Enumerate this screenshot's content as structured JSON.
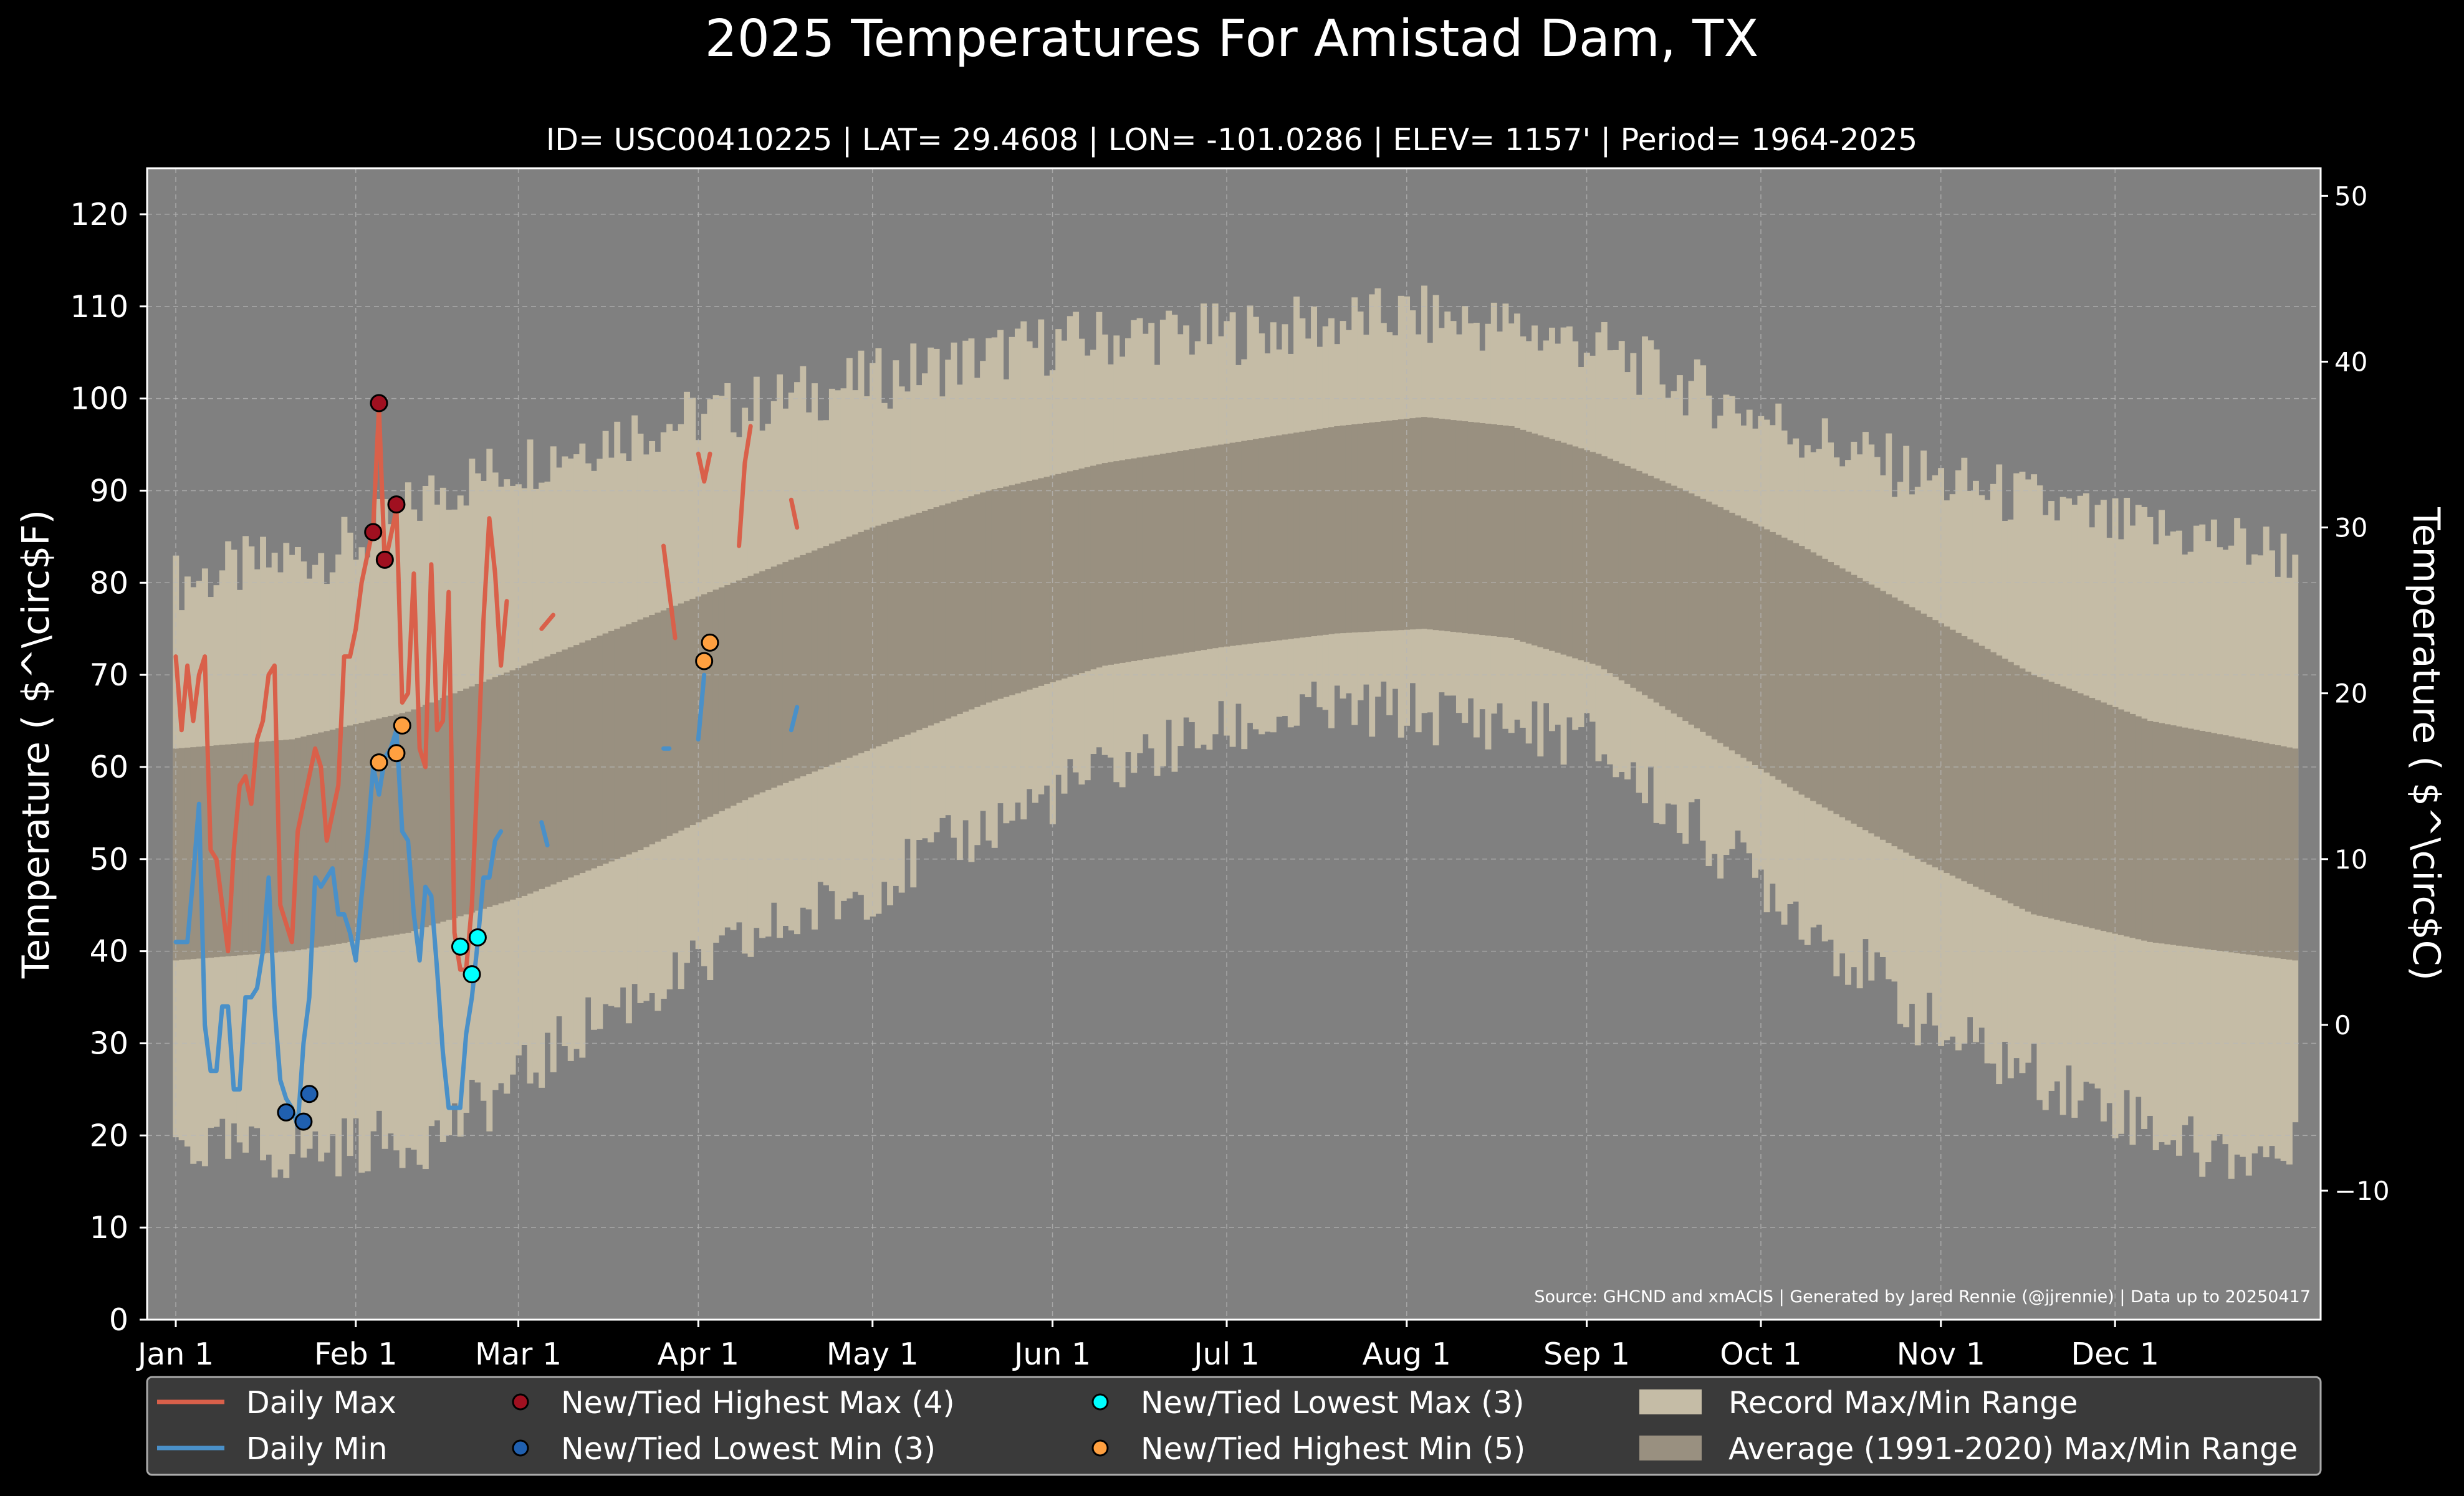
{
  "title": "2025 Temperatures For Amistad Dam, TX",
  "subtitle": "ID= USC00410225 | LAT= 29.4608 | LON= -101.0286 | ELEV= 1157' | Period= 1964-2025",
  "source_note": "Source: GHCND and xmACIS | Generated by Jared Rennie (@jjrennie) | Data up to 20250417",
  "colors": {
    "background": "#000000",
    "plot_background": "#808080",
    "record_range": "#c5bca6",
    "normal_range": "#999080",
    "daily_max": "#d9604a",
    "daily_min": "#4a90c8",
    "record_high_max": "#a01020",
    "record_low_min": "#2060b0",
    "record_low_max": "#00ffff",
    "record_high_min": "#ffa040",
    "grid": "#b8b8b8",
    "legend_background": "#3a3a3a"
  },
  "chart_data": {
    "type": "line",
    "x_domain": [
      0,
      365
    ],
    "ylabel_left": "Temperature ( $^\\circ$F)",
    "ylabel_right": "Temperature ( $^\\circ$C)",
    "ylim_f": [
      0,
      125
    ],
    "yticks_f": [
      0,
      10,
      20,
      30,
      40,
      50,
      60,
      70,
      80,
      90,
      100,
      110,
      120
    ],
    "yticks_c": [
      -10,
      0,
      10,
      20,
      30,
      40,
      50
    ],
    "x_ticks": [
      {
        "day": 0,
        "label": "Jan 1"
      },
      {
        "day": 31,
        "label": "Feb 1"
      },
      {
        "day": 59,
        "label": "Mar 1"
      },
      {
        "day": 90,
        "label": "Apr 1"
      },
      {
        "day": 120,
        "label": "May 1"
      },
      {
        "day": 151,
        "label": "Jun 1"
      },
      {
        "day": 181,
        "label": "Jul 1"
      },
      {
        "day": 212,
        "label": "Aug 1"
      },
      {
        "day": 243,
        "label": "Sep 1"
      },
      {
        "day": 273,
        "label": "Oct 1"
      },
      {
        "day": 304,
        "label": "Nov 1"
      },
      {
        "day": 334,
        "label": "Dec 1"
      }
    ],
    "grid": true,
    "legend_position": "bottom",
    "record_max_anchors": [
      [
        0,
        80
      ],
      [
        15,
        82
      ],
      [
        31,
        84
      ],
      [
        45,
        90
      ],
      [
        59,
        93
      ],
      [
        75,
        96
      ],
      [
        90,
        98
      ],
      [
        105,
        100
      ],
      [
        120,
        102
      ],
      [
        135,
        104
      ],
      [
        151,
        106
      ],
      [
        166,
        107
      ],
      [
        181,
        107
      ],
      [
        197,
        108
      ],
      [
        212,
        109
      ],
      [
        228,
        108
      ],
      [
        243,
        106
      ],
      [
        258,
        102
      ],
      [
        273,
        98
      ],
      [
        289,
        94
      ],
      [
        304,
        91
      ],
      [
        319,
        89
      ],
      [
        334,
        86
      ],
      [
        350,
        85
      ],
      [
        365,
        83
      ]
    ],
    "record_min_anchors": [
      [
        0,
        19
      ],
      [
        15,
        18
      ],
      [
        31,
        19
      ],
      [
        45,
        20
      ],
      [
        59,
        26
      ],
      [
        75,
        34
      ],
      [
        90,
        38
      ],
      [
        105,
        43
      ],
      [
        120,
        47
      ],
      [
        135,
        52
      ],
      [
        151,
        57
      ],
      [
        166,
        61
      ],
      [
        181,
        64
      ],
      [
        197,
        66
      ],
      [
        212,
        66
      ],
      [
        228,
        65
      ],
      [
        243,
        63
      ],
      [
        258,
        55
      ],
      [
        273,
        48
      ],
      [
        289,
        39
      ],
      [
        304,
        31
      ],
      [
        319,
        27
      ],
      [
        334,
        23
      ],
      [
        350,
        18
      ],
      [
        365,
        18
      ]
    ],
    "normal_max_anchors": [
      [
        0,
        62
      ],
      [
        20,
        63
      ],
      [
        40,
        66
      ],
      [
        60,
        71
      ],
      [
        80,
        76
      ],
      [
        100,
        81
      ],
      [
        120,
        86
      ],
      [
        140,
        90
      ],
      [
        160,
        93
      ],
      [
        180,
        95
      ],
      [
        200,
        97
      ],
      [
        215,
        98
      ],
      [
        230,
        97
      ],
      [
        245,
        94
      ],
      [
        260,
        90
      ],
      [
        280,
        84
      ],
      [
        300,
        77
      ],
      [
        320,
        70
      ],
      [
        340,
        65
      ],
      [
        365,
        62
      ]
    ],
    "normal_min_anchors": [
      [
        0,
        39
      ],
      [
        20,
        40
      ],
      [
        40,
        42
      ],
      [
        60,
        46
      ],
      [
        80,
        51
      ],
      [
        100,
        57
      ],
      [
        120,
        62
      ],
      [
        140,
        67
      ],
      [
        160,
        71
      ],
      [
        180,
        73
      ],
      [
        200,
        74.5
      ],
      [
        215,
        75
      ],
      [
        230,
        74
      ],
      [
        245,
        71
      ],
      [
        260,
        65
      ],
      [
        280,
        57
      ],
      [
        300,
        50
      ],
      [
        320,
        44
      ],
      [
        340,
        41
      ],
      [
        365,
        39
      ]
    ],
    "series": [
      {
        "name": "Daily Max",
        "segments": [
          [
            [
              0,
              72
            ],
            [
              1,
              64
            ],
            [
              2,
              71
            ],
            [
              3,
              65
            ],
            [
              4,
              70
            ],
            [
              5,
              72
            ],
            [
              6,
              51
            ],
            [
              7,
              50
            ],
            [
              8,
              45
            ],
            [
              9,
              40
            ],
            [
              10,
              51
            ],
            [
              11,
              58
            ],
            [
              12,
              59
            ],
            [
              13,
              56
            ],
            [
              14,
              63
            ],
            [
              15,
              65
            ],
            [
              16,
              70
            ],
            [
              17,
              71
            ],
            [
              18,
              45
            ],
            [
              19,
              43
            ],
            [
              20,
              41
            ],
            [
              21,
              53
            ],
            [
              22,
              56
            ],
            [
              23,
              59
            ],
            [
              24,
              62
            ],
            [
              25,
              60
            ],
            [
              26,
              52
            ],
            [
              27,
              55
            ],
            [
              28,
              58
            ],
            [
              29,
              72
            ],
            [
              30,
              72
            ],
            [
              31,
              75
            ],
            [
              32,
              80
            ],
            [
              33,
              83
            ],
            [
              34,
              86
            ],
            [
              35,
              99
            ],
            [
              36,
              82
            ],
            [
              37,
              85
            ],
            [
              38,
              88
            ],
            [
              39,
              67
            ],
            [
              40,
              68
            ],
            [
              41,
              81
            ],
            [
              42,
              62
            ],
            [
              43,
              60
            ],
            [
              44,
              82
            ],
            [
              45,
              64
            ],
            [
              46,
              65
            ],
            [
              47,
              79
            ],
            [
              48,
              42
            ],
            [
              49,
              38
            ],
            [
              50,
              38
            ],
            [
              51,
              45
            ],
            [
              52,
              60
            ],
            [
              53,
              76
            ],
            [
              54,
              87
            ],
            [
              55,
              81
            ],
            [
              56,
              71
            ],
            [
              57,
              78
            ]
          ],
          [
            [
              63,
              75
            ],
            [
              65,
              76.5
            ]
          ],
          [
            [
              84,
              84
            ],
            [
              85,
              79
            ],
            [
              86,
              74
            ]
          ],
          [
            [
              90,
              94
            ],
            [
              91,
              91
            ],
            [
              92,
              94
            ]
          ],
          [
            [
              97,
              84
            ],
            [
              98,
              93
            ],
            [
              99,
              97
            ]
          ],
          [
            [
              106,
              89
            ],
            [
              107,
              86
            ]
          ]
        ]
      },
      {
        "name": "Daily Min",
        "segments": [
          [
            [
              0,
              41
            ],
            [
              1,
              41
            ],
            [
              2,
              41
            ],
            [
              3,
              48
            ],
            [
              4,
              56
            ],
            [
              5,
              32
            ],
            [
              6,
              27
            ],
            [
              7,
              27
            ],
            [
              8,
              34
            ],
            [
              9,
              34
            ],
            [
              10,
              25
            ],
            [
              11,
              25
            ],
            [
              12,
              35
            ],
            [
              13,
              35
            ],
            [
              14,
              36
            ],
            [
              15,
              40
            ],
            [
              16,
              48
            ],
            [
              17,
              34
            ],
            [
              18,
              26
            ],
            [
              19,
              24
            ],
            [
              20,
              23
            ],
            [
              21,
              21
            ],
            [
              22,
              30
            ],
            [
              23,
              35
            ],
            [
              24,
              48
            ],
            [
              25,
              47
            ],
            [
              26,
              48
            ],
            [
              27,
              49
            ],
            [
              28,
              44
            ],
            [
              29,
              44
            ],
            [
              30,
              42
            ],
            [
              31,
              39
            ],
            [
              32,
              46
            ],
            [
              33,
              52
            ],
            [
              34,
              60
            ],
            [
              35,
              57
            ],
            [
              36,
              61
            ],
            [
              37,
              62
            ],
            [
              38,
              64
            ],
            [
              39,
              53
            ],
            [
              40,
              52
            ],
            [
              41,
              44
            ],
            [
              42,
              39
            ],
            [
              43,
              47
            ],
            [
              44,
              46
            ],
            [
              45,
              38
            ],
            [
              46,
              29
            ],
            [
              47,
              23
            ],
            [
              48,
              23
            ],
            [
              49,
              23
            ],
            [
              50,
              31
            ],
            [
              51,
              35
            ],
            [
              52,
              41
            ],
            [
              53,
              48
            ],
            [
              54,
              48
            ],
            [
              55,
              52
            ],
            [
              56,
              53
            ]
          ],
          [
            [
              63,
              54
            ],
            [
              64,
              51.5
            ]
          ],
          [
            [
              84,
              62
            ],
            [
              85,
              62
            ]
          ],
          [
            [
              90,
              63
            ],
            [
              91,
              70
            ]
          ],
          [
            [
              106,
              64
            ],
            [
              107,
              66.5
            ]
          ]
        ]
      }
    ],
    "markers": [
      {
        "name": "New/Tied Highest Max (4)",
        "points": [
          [
            34,
            85.5
          ],
          [
            35,
            99.5
          ],
          [
            36,
            82.5
          ],
          [
            38,
            88.5
          ]
        ]
      },
      {
        "name": "New/Tied Lowest Min (3)",
        "points": [
          [
            19,
            22.5
          ],
          [
            22,
            21.5
          ],
          [
            23,
            24.5
          ]
        ]
      },
      {
        "name": "New/Tied Lowest Max (3)",
        "points": [
          [
            49,
            40.5
          ],
          [
            51,
            37.5
          ],
          [
            52,
            41.5
          ]
        ]
      },
      {
        "name": "New/Tied Highest Min (5)",
        "points": [
          [
            35,
            60.5
          ],
          [
            38,
            61.5
          ],
          [
            39,
            64.5
          ],
          [
            91,
            71.5
          ],
          [
            92,
            73.5
          ]
        ]
      }
    ]
  },
  "legend": {
    "items": [
      {
        "label": "Daily Max",
        "kind": "line",
        "color": "#d9604a"
      },
      {
        "label": "Daily Min",
        "kind": "line",
        "color": "#4a90c8"
      },
      {
        "label": "New/Tied Highest Max (4)",
        "kind": "dot",
        "color": "#a01020"
      },
      {
        "label": "New/Tied Lowest Min (3)",
        "kind": "dot",
        "color": "#2060b0"
      },
      {
        "label": "New/Tied Lowest Max (3)",
        "kind": "dot",
        "color": "#00ffff"
      },
      {
        "label": "New/Tied Highest Min (5)",
        "kind": "dot",
        "color": "#ffa040"
      },
      {
        "label": "Record Max/Min Range",
        "kind": "patch",
        "color": "#c5bca6"
      },
      {
        "label": "Average (1991-2020) Max/Min Range",
        "kind": "patch",
        "color": "#999080"
      }
    ]
  }
}
